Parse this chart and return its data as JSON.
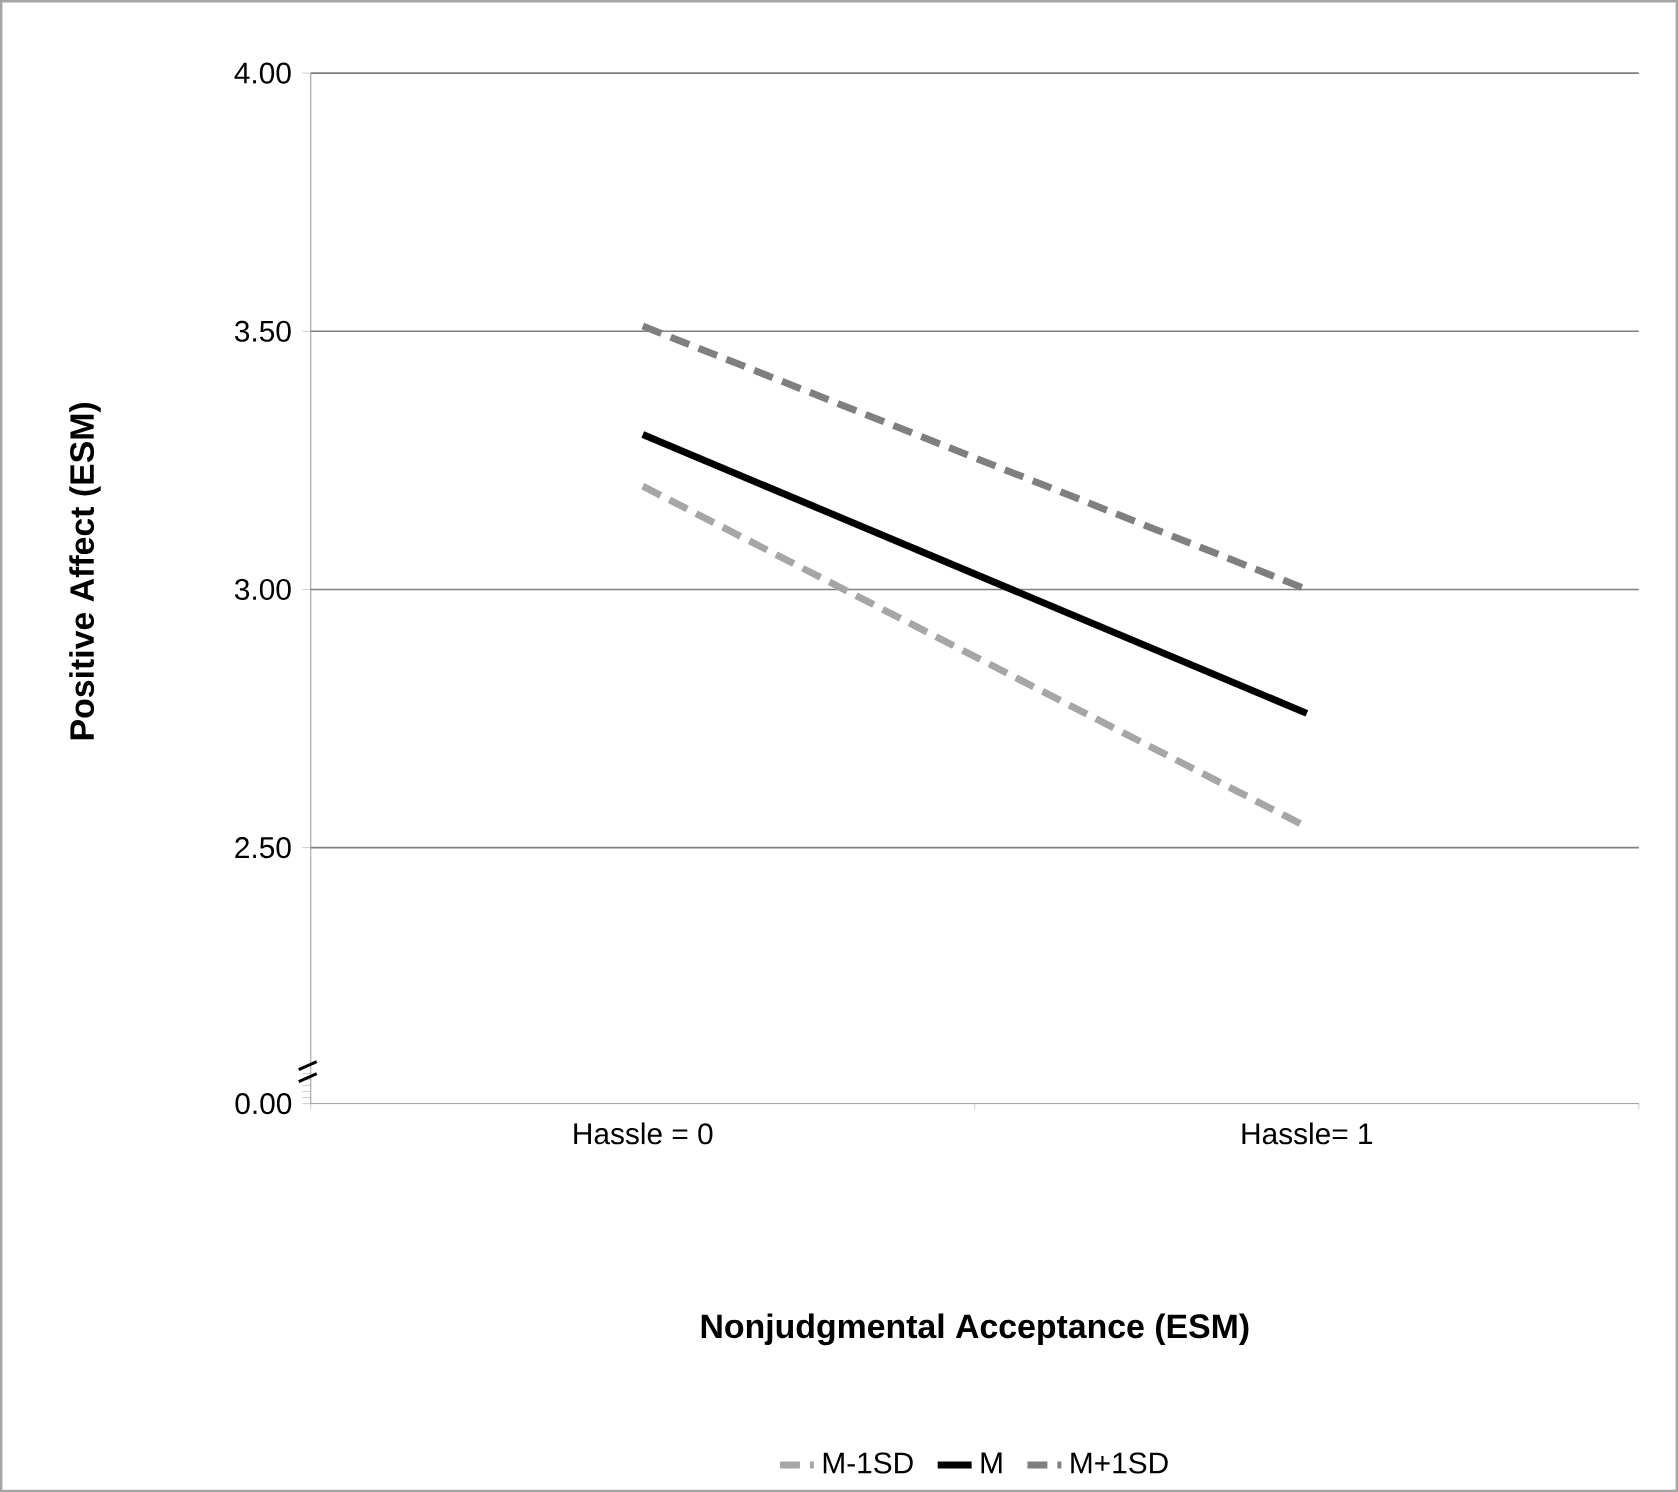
{
  "chart_data": [
    {
      "type": "line",
      "ylabel": "Positive Affect (ESM)",
      "categories": [
        null,
        null
      ],
      "tick_labels": "y",
      "ylim": [
        2.07,
        4.0
      ],
      "yticks": [
        {
          "value": 2.5,
          "label": "2.50"
        },
        {
          "value": 3.0,
          "label": "3.00"
        },
        {
          "value": 3.5,
          "label": "3.50"
        },
        {
          "value": 4.0,
          "label": "4.00"
        }
      ],
      "grid": "y",
      "legend": "bottom",
      "marker": "none",
      "series": [
        {
          "name": "M-1SD",
          "color": "#a6a6a6",
          "line_style": "dashed",
          "values": [
            3.2,
            2.54
          ]
        },
        {
          "name": "M",
          "color": "#000000",
          "line_style": "solid",
          "values": [
            3.3,
            2.76
          ]
        },
        {
          "name": "M+1SD",
          "color": "#7f7f7f",
          "line_style": "dashed",
          "values": [
            3.51,
            3.0
          ]
        }
      ]
    },
    {
      "type": "other",
      "xlabel": "Nonjudgmental Acceptance (ESM)",
      "categories": [
        "Hassle = 0",
        "Hassle= 1"
      ],
      "annotations": [
        "0.00"
      ]
    }
  ]
}
